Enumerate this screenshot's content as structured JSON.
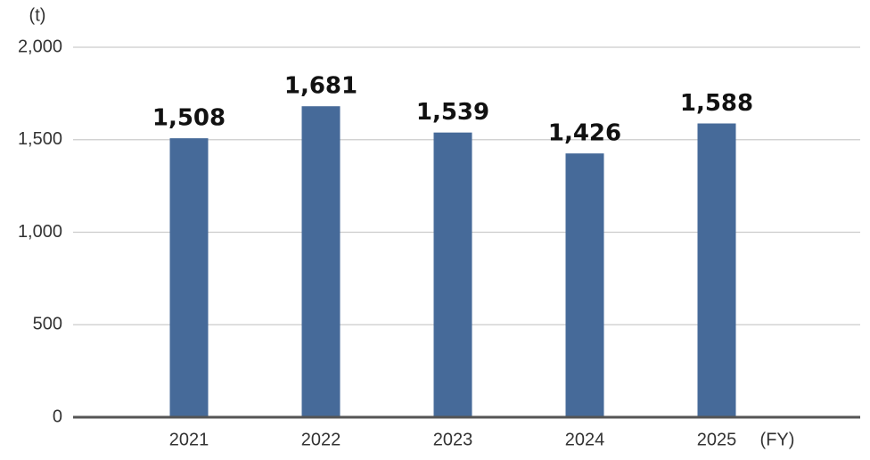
{
  "chart_data": {
    "type": "bar",
    "y_unit": "(t)",
    "x_unit": "(FY)",
    "categories": [
      "2021",
      "2022",
      "2023",
      "2024",
      "2025"
    ],
    "values": [
      1508,
      1681,
      1539,
      1426,
      1588
    ],
    "value_labels": [
      "1,508",
      "1,681",
      "1,539",
      "1,426",
      "1,588"
    ],
    "color": "#466a99",
    "ylim": [
      0,
      2000
    ],
    "yticks": [
      0,
      500,
      {
        "value": 1000,
        "label": "1,000"
      },
      {
        "value": 1500,
        "label": "1,500"
      },
      {
        "value": 2000,
        "label": "2,000"
      }
    ],
    "grid": true
  }
}
